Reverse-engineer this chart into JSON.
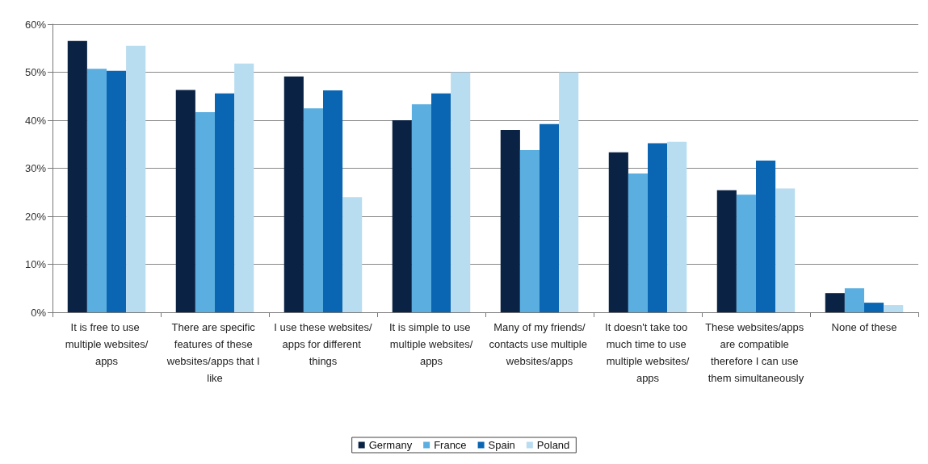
{
  "chart_data": {
    "type": "bar",
    "categories": [
      "It is free to use multiple websites/apps",
      "There are specific features of these websites/apps that I like",
      "I use these websites/apps for different things",
      "It is simple to use multiple websites/apps",
      "Many of my friends/contacts use multiple websites/apps",
      "It doesn't take too much time to use multiple websites/apps",
      "These websites/apps are compatible therefore I can use them simultaneously",
      "None of these"
    ],
    "series": [
      {
        "name": "Germany",
        "color": "#0a2244",
        "values": [
          56.5,
          46.3,
          49.1,
          40.0,
          38.0,
          33.3,
          25.4,
          4.0
        ]
      },
      {
        "name": "France",
        "color": "#5aaee0",
        "values": [
          50.7,
          41.7,
          42.5,
          43.3,
          33.8,
          28.9,
          24.5,
          5.0
        ]
      },
      {
        "name": "Spain",
        "color": "#0a66b3",
        "values": [
          50.3,
          45.6,
          46.2,
          45.6,
          39.2,
          35.2,
          31.6,
          2.0
        ]
      },
      {
        "name": "Poland",
        "color": "#b8dcf0",
        "values": [
          55.5,
          51.8,
          24.0,
          50.0,
          50.0,
          35.5,
          25.8,
          1.5
        ]
      }
    ],
    "ylim": [
      0,
      60
    ],
    "yticks": [
      {
        "value": 0,
        "label": "0%"
      },
      {
        "value": 10,
        "label": "10%"
      },
      {
        "value": 20,
        "label": "20%"
      },
      {
        "value": 30,
        "label": "30%"
      },
      {
        "value": 40,
        "label": "40%"
      },
      {
        "value": 50,
        "label": "50%"
      },
      {
        "value": 60,
        "label": "60%"
      }
    ],
    "grid": "y",
    "legend": "bottom"
  }
}
